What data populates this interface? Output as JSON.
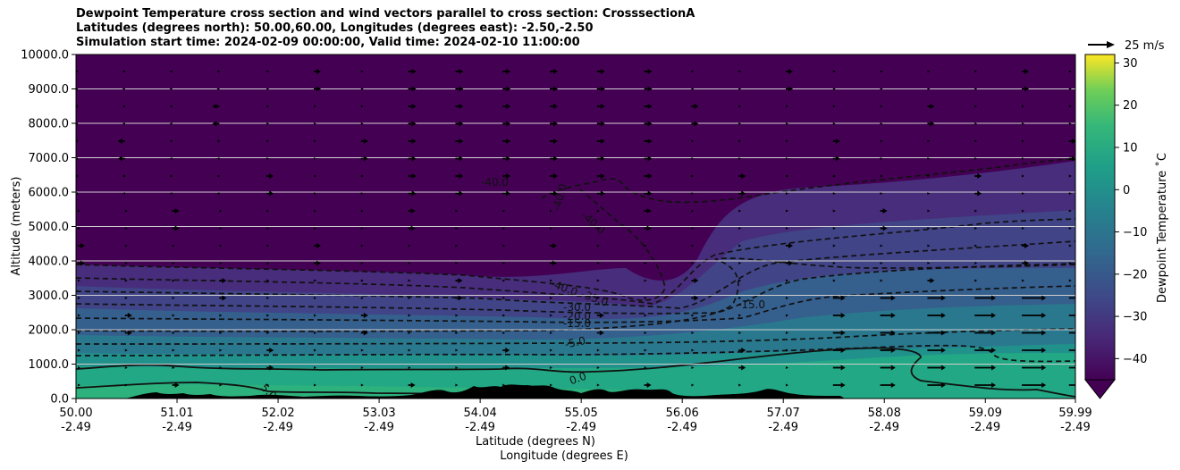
{
  "chart_data": {
    "type": "heatmap",
    "title": [
      "Dewpoint Temperature cross section and wind vectors parallel to cross section: CrosssectionA",
      "Latitudes (degrees north): 50.00,60.00, Longitudes (degrees east): -2.50,-2.50",
      "Simulation start time: 2024-02-09 00:00:00, Valid time: 2024-02-10 11:00:00"
    ],
    "xlabel": "Latitude (degrees N)",
    "xlabel2": "Longitude (degrees E)",
    "ylabel": "Altitude (meters)",
    "x_ticks": [
      {
        "lat": "50.00",
        "lon": "-2.49"
      },
      {
        "lat": "51.01",
        "lon": "-2.49"
      },
      {
        "lat": "52.02",
        "lon": "-2.49"
      },
      {
        "lat": "53.03",
        "lon": "-2.49"
      },
      {
        "lat": "54.04",
        "lon": "-2.49"
      },
      {
        "lat": "55.05",
        "lon": "-2.49"
      },
      {
        "lat": "56.06",
        "lon": "-2.49"
      },
      {
        "lat": "57.07",
        "lon": "-2.49"
      },
      {
        "lat": "58.08",
        "lon": "-2.49"
      },
      {
        "lat": "59.09",
        "lon": "-2.49"
      },
      {
        "lat": "59.99",
        "lon": "-2.49"
      }
    ],
    "xlim": [
      50.0,
      59.99
    ],
    "y_ticks": [
      "0.0",
      "1000.0",
      "2000.0",
      "3000.0",
      "4000.0",
      "5000.0",
      "6000.0",
      "7000.0",
      "8000.0",
      "9000.0",
      "10000.0"
    ],
    "ylim": [
      0,
      10000
    ],
    "grid": "horizontal",
    "colorbar": {
      "label": "Dewpoint Temperature ˚C",
      "ticks": [
        "30",
        "20",
        "10",
        "0",
        "−10",
        "−20",
        "−30",
        "−40"
      ],
      "range": [
        -45,
        32
      ],
      "extend": "min",
      "colormap": "viridis"
    },
    "contour_labels": [
      {
        "text": "-40.0",
        "lat": 54.2,
        "alt": 6200
      },
      {
        "text": "-40.0",
        "lat": 54.8,
        "alt": 5800
      },
      {
        "text": "-40.0",
        "lat": 55.1,
        "alt": 5300
      },
      {
        "text": "-40.0",
        "lat": 54.9,
        "alt": 3200
      },
      {
        "text": "-35.0",
        "lat": 55.2,
        "alt": 2950
      },
      {
        "text": "-30.0",
        "lat": 55.0,
        "alt": 2700
      },
      {
        "text": "-20.0",
        "lat": 55.0,
        "alt": 2350
      },
      {
        "text": "-15.0",
        "lat": 55.0,
        "alt": 2200
      },
      {
        "text": "-15.0",
        "lat": 56.7,
        "alt": 2700
      },
      {
        "text": "-5.0",
        "lat": 55.0,
        "alt": 1600
      },
      {
        "text": "0.0",
        "lat": 55.0,
        "alt": 600
      },
      {
        "text": "5.0",
        "lat": 52.0,
        "alt": 150
      }
    ],
    "quiver_key": "25 m/s"
  }
}
